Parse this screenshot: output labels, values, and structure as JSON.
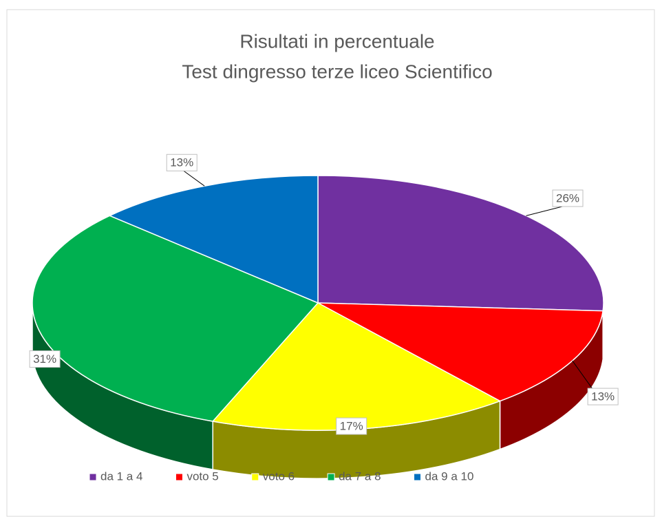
{
  "chart_data": {
    "type": "pie",
    "title": "Risultati in percentuale",
    "subtitle": "Test dingresso terze liceo Scientifico",
    "categories": [
      "da 1 a 4",
      "voto 5",
      "voto 6",
      "da 7 a 8",
      "da 9 a 10"
    ],
    "values": [
      26,
      13,
      17,
      31,
      13
    ],
    "value_labels": [
      "26%",
      "13%",
      "17%",
      "31%",
      "13%"
    ],
    "colors": [
      "#7030a0",
      "#ff0000",
      "#ffff00",
      "#00b050",
      "#0070c0"
    ],
    "legend": "bottom"
  }
}
